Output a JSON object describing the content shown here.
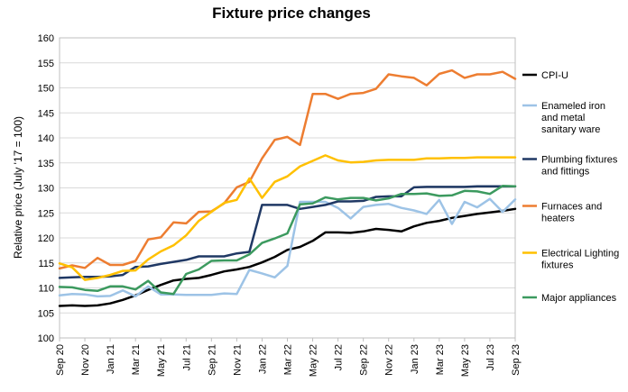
{
  "chart_data": {
    "type": "line",
    "title": "Fixture price changes",
    "ylabel": "Relative price (July '17 = 100)",
    "xlabel": "",
    "ylim": [
      100,
      160
    ],
    "yticks": [
      100,
      105,
      110,
      115,
      120,
      125,
      130,
      135,
      140,
      145,
      150,
      155,
      160
    ],
    "grid": "horizontal",
    "legend_placement": "right",
    "x": [
      "Sep 20",
      "Oct 20",
      "Nov 20",
      "Dec 20",
      "Jan 21",
      "Feb 21",
      "Mar 21",
      "Apr 21",
      "May 21",
      "Jun 21",
      "Jul 21",
      "Aug 21",
      "Sep 21",
      "Oct 21",
      "Nov 21",
      "Dec 21",
      "Jan 22",
      "Feb 22",
      "Mar 22",
      "Apr 22",
      "May 22",
      "Jun 22",
      "Jul 22",
      "Aug 22",
      "Sep 22",
      "Oct 22",
      "Nov 22",
      "Dec 22",
      "Jan 23",
      "Feb 23",
      "Mar 23",
      "Apr 23",
      "May 23",
      "Jun 23",
      "Jul 23",
      "Aug 23",
      "Sep 23"
    ],
    "xtick_labels": [
      "Sep 20",
      "Nov 20",
      "Jan 21",
      "Mar 21",
      "May 21",
      "Jul 21",
      "Sep 21",
      "Nov 21",
      "Jan 22",
      "Mar 22",
      "May 22",
      "Jul 22",
      "Sep 22",
      "Nov 22",
      "Jan 23",
      "Mar 23",
      "May 23",
      "Jul 23",
      "Sep 23"
    ],
    "series": [
      {
        "name": "CPI-U",
        "color": "#000000",
        "values": [
          106.4,
          106.5,
          106.4,
          106.5,
          106.9,
          107.6,
          108.5,
          109.6,
          110.6,
          111.5,
          111.8,
          112.0,
          112.6,
          113.3,
          113.7,
          114.2,
          115.1,
          116.2,
          117.6,
          118.2,
          119.4,
          121.1,
          121.1,
          121.0,
          121.3,
          121.8,
          121.6,
          121.3,
          122.3,
          123.0,
          123.4,
          124.0,
          124.4,
          124.8,
          125.1,
          125.4,
          125.8
        ]
      },
      {
        "name": "Enameled iron and metal sanitary ware",
        "color": "#9dc3e6",
        "values": [
          108.5,
          108.8,
          108.7,
          108.3,
          108.4,
          109.5,
          108.3,
          110.3,
          108.7,
          108.7,
          108.6,
          108.6,
          108.6,
          108.9,
          108.8,
          113.6,
          112.9,
          112.1,
          114.4,
          127.2,
          127.2,
          127.2,
          126.0,
          123.9,
          126.2,
          126.6,
          126.8,
          126.0,
          125.5,
          124.8,
          127.6,
          122.8,
          127.2,
          126.1,
          127.8,
          125.2,
          127.7
        ]
      },
      {
        "name": "Plumbing fixtures and fittings",
        "color": "#1f3864",
        "values": [
          112.0,
          112.1,
          112.2,
          112.2,
          112.3,
          112.6,
          114.2,
          114.3,
          114.8,
          115.2,
          115.6,
          116.3,
          116.3,
          116.3,
          116.9,
          117.2,
          126.6,
          126.6,
          126.6,
          125.8,
          126.2,
          126.6,
          127.3,
          127.3,
          127.4,
          128.2,
          128.3,
          128.3,
          130.1,
          130.2,
          130.2,
          130.2,
          130.2,
          130.3,
          130.3,
          130.3,
          130.3
        ]
      },
      {
        "name": "Furnaces and heaters",
        "color": "#ed7d31",
        "values": [
          113.9,
          114.5,
          114.0,
          116.0,
          114.6,
          114.6,
          115.4,
          119.7,
          120.1,
          123.1,
          122.9,
          125.2,
          125.3,
          126.9,
          130.1,
          131.2,
          135.9,
          139.6,
          140.2,
          138.6,
          148.8,
          148.8,
          147.8,
          148.8,
          149.0,
          149.8,
          152.7,
          152.3,
          152.0,
          150.5,
          152.8,
          153.5,
          152.0,
          152.7,
          152.7,
          153.2,
          151.8
        ]
      },
      {
        "name": "Electrical Lighting fixtures",
        "color": "#ffc000",
        "values": [
          114.9,
          114.1,
          111.6,
          112.0,
          112.6,
          113.4,
          113.5,
          115.7,
          117.3,
          118.5,
          120.5,
          123.4,
          125.2,
          127.0,
          127.6,
          131.9,
          128.0,
          131.2,
          132.3,
          134.3,
          135.4,
          136.5,
          135.5,
          135.1,
          135.2,
          135.5,
          135.6,
          135.6,
          135.6,
          135.9,
          135.9,
          136.0,
          136.0,
          136.1,
          136.1,
          136.1,
          136.1
        ]
      },
      {
        "name": "Major appliances",
        "color": "#3c9a5f",
        "values": [
          110.2,
          110.1,
          109.6,
          109.4,
          110.3,
          110.3,
          109.7,
          111.4,
          109.1,
          108.8,
          112.8,
          113.7,
          115.4,
          115.5,
          115.5,
          116.7,
          119.0,
          119.9,
          120.9,
          126.7,
          126.9,
          128.1,
          127.7,
          128.0,
          128.0,
          127.5,
          127.9,
          128.8,
          128.8,
          128.9,
          128.4,
          128.5,
          129.4,
          129.3,
          128.8,
          130.4,
          130.3
        ]
      }
    ],
    "legend_labels": [
      {
        "series": "CPI-U",
        "lines": [
          "CPI-U"
        ]
      },
      {
        "series": "Enameled iron and metal sanitary ware",
        "lines": [
          "Enameled iron",
          "and metal",
          "sanitary ware"
        ]
      },
      {
        "series": "Plumbing fixtures and fittings",
        "lines": [
          "Plumbing fixtures",
          "and fittings"
        ]
      },
      {
        "series": "Furnaces and heaters",
        "lines": [
          "Furnaces and",
          "heaters"
        ]
      },
      {
        "series": "Electrical Lighting fixtures",
        "lines": [
          "Electrical Lighting",
          "fixtures"
        ]
      },
      {
        "series": "Major appliances",
        "lines": [
          "Major appliances"
        ]
      }
    ]
  }
}
